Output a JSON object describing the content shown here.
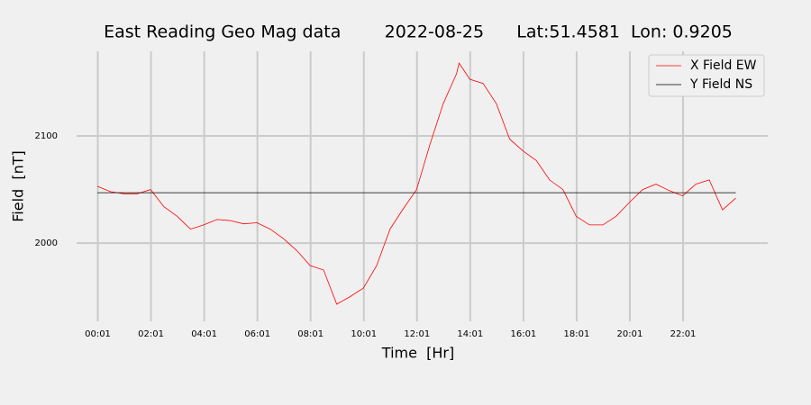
{
  "chart_data": {
    "type": "line",
    "title": "East Reading Geo Mag data        2022-08-25      Lat:51.4581  Lon: 0.9205",
    "x_label": "Time  [Hr]",
    "y_label": "Field  [nT]",
    "series": [
      {
        "name": "X Field EW",
        "color": "#ff0000",
        "x": [
          0,
          0.5,
          1,
          1.5,
          2,
          2.5,
          3,
          3.5,
          4,
          4.5,
          5,
          5.5,
          6,
          6.5,
          7,
          7.5,
          8,
          8.5,
          9,
          9.5,
          10,
          10.5,
          11,
          11.5,
          12,
          12.5,
          13,
          13.5,
          13.6,
          14,
          14.5,
          15,
          15.5,
          16,
          16.5,
          17,
          17.5,
          18,
          18.5,
          19,
          19.5,
          20,
          20.5,
          21,
          21.5,
          22,
          22.5,
          23,
          23.5,
          24
        ],
        "values": [
          2053,
          2048,
          2046,
          2046,
          2050,
          2034,
          2025,
          2013,
          2017,
          2022,
          2021,
          2018,
          2019,
          2013,
          2004,
          1993,
          1979,
          1975,
          1943,
          1950,
          1958,
          1979,
          2013,
          2032,
          2050,
          2092,
          2130,
          2158,
          2168,
          2153,
          2149,
          2130,
          2097,
          2086,
          2077,
          2059,
          2050,
          2025,
          2017,
          2017,
          2025,
          2038,
          2050,
          2055,
          2049,
          2044,
          2055,
          2059,
          2031,
          2042
        ]
      },
      {
        "name": "Y Field NS",
        "color": "#000000",
        "x": [
          0,
          24
        ],
        "values": [
          2047,
          2047
        ]
      }
    ],
    "xlim": [
      -0.78,
      25.2
    ],
    "ylim": [
      1927,
      2179
    ],
    "xticks": [
      {
        "value": 0.0167,
        "label": "00:01"
      },
      {
        "value": 2.0167,
        "label": "02:01"
      },
      {
        "value": 4.0167,
        "label": "04:01"
      },
      {
        "value": 6.0167,
        "label": "06:01"
      },
      {
        "value": 8.0167,
        "label": "08:01"
      },
      {
        "value": 10.0167,
        "label": "10:01"
      },
      {
        "value": 12.0167,
        "label": "12:01"
      },
      {
        "value": 14.0167,
        "label": "14:01"
      },
      {
        "value": 16.0167,
        "label": "16:01"
      },
      {
        "value": 18.0167,
        "label": "18:01"
      },
      {
        "value": 20.0167,
        "label": "20:01"
      },
      {
        "value": 22.0167,
        "label": "22:01"
      }
    ],
    "yticks": [
      2000,
      2100
    ],
    "grid": true,
    "legend": "upper right"
  }
}
